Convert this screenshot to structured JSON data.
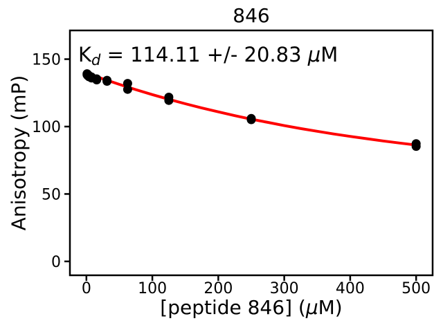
{
  "title": "846",
  "annotation": {
    "k": "K",
    "sub": "d",
    "middle": " = 114.11 +/- 20.83 ",
    "mu": "μ",
    "m": "M",
    "full_text": "Kd = 114.11 +/- 20.83 μM"
  },
  "axes": {
    "y_label": "Anisotropy (mP)",
    "x_label_prefix": "[peptide 846] (",
    "x_label_mu": "μ",
    "x_label_suffix": "M)"
  },
  "colors": {
    "fit_curve": "#ff0000",
    "marker": "#000000",
    "spine": "#000000",
    "background": "#ffffff"
  },
  "chart_data": {
    "type": "scatter",
    "title": "846",
    "xlabel": "[peptide 846] (μM)",
    "ylabel": "Anisotropy (mP)",
    "annotation": "Kd = 114.11 +/- 20.83 μM",
    "kd_uM": 114.11,
    "kd_err_uM": 20.83,
    "xlim": [
      -25,
      525
    ],
    "ylim": [
      -10.3,
      171.3
    ],
    "x_ticks": [
      0,
      100,
      200,
      300,
      400,
      500
    ],
    "y_ticks": [
      0,
      50,
      100,
      150
    ],
    "grid": false,
    "legend": "none",
    "points": [
      [
        0.98,
        139.2
      ],
      [
        0.98,
        138.4
      ],
      [
        1.95,
        138.6
      ],
      [
        1.95,
        137.8
      ],
      [
        3.9,
        137.8
      ],
      [
        3.9,
        137.0
      ],
      [
        7.8,
        136.8
      ],
      [
        7.8,
        136.0
      ],
      [
        15.6,
        135.4
      ],
      [
        15.6,
        134.6
      ],
      [
        31.25,
        134.3
      ],
      [
        31.25,
        133.6
      ],
      [
        62.5,
        132.0
      ],
      [
        62.5,
        127.6
      ],
      [
        125,
        121.8
      ],
      [
        125,
        119.4
      ],
      [
        250,
        106.0
      ],
      [
        250,
        105.1
      ],
      [
        500,
        87.3
      ],
      [
        500,
        85.3
      ]
    ],
    "fit_curve": {
      "x": [
        0,
        25,
        50,
        75,
        100,
        125,
        150,
        175,
        200,
        225,
        250,
        275,
        300,
        325,
        350,
        375,
        400,
        425,
        450,
        475,
        500
      ],
      "y": [
        139.8,
        135.4,
        131.3,
        127.4,
        123.7,
        120.2,
        116.9,
        113.8,
        110.9,
        108.1,
        105.5,
        103.1,
        100.7,
        98.5,
        96.5,
        94.5,
        92.7,
        91.0,
        89.3,
        87.8,
        86.3
      ]
    }
  }
}
